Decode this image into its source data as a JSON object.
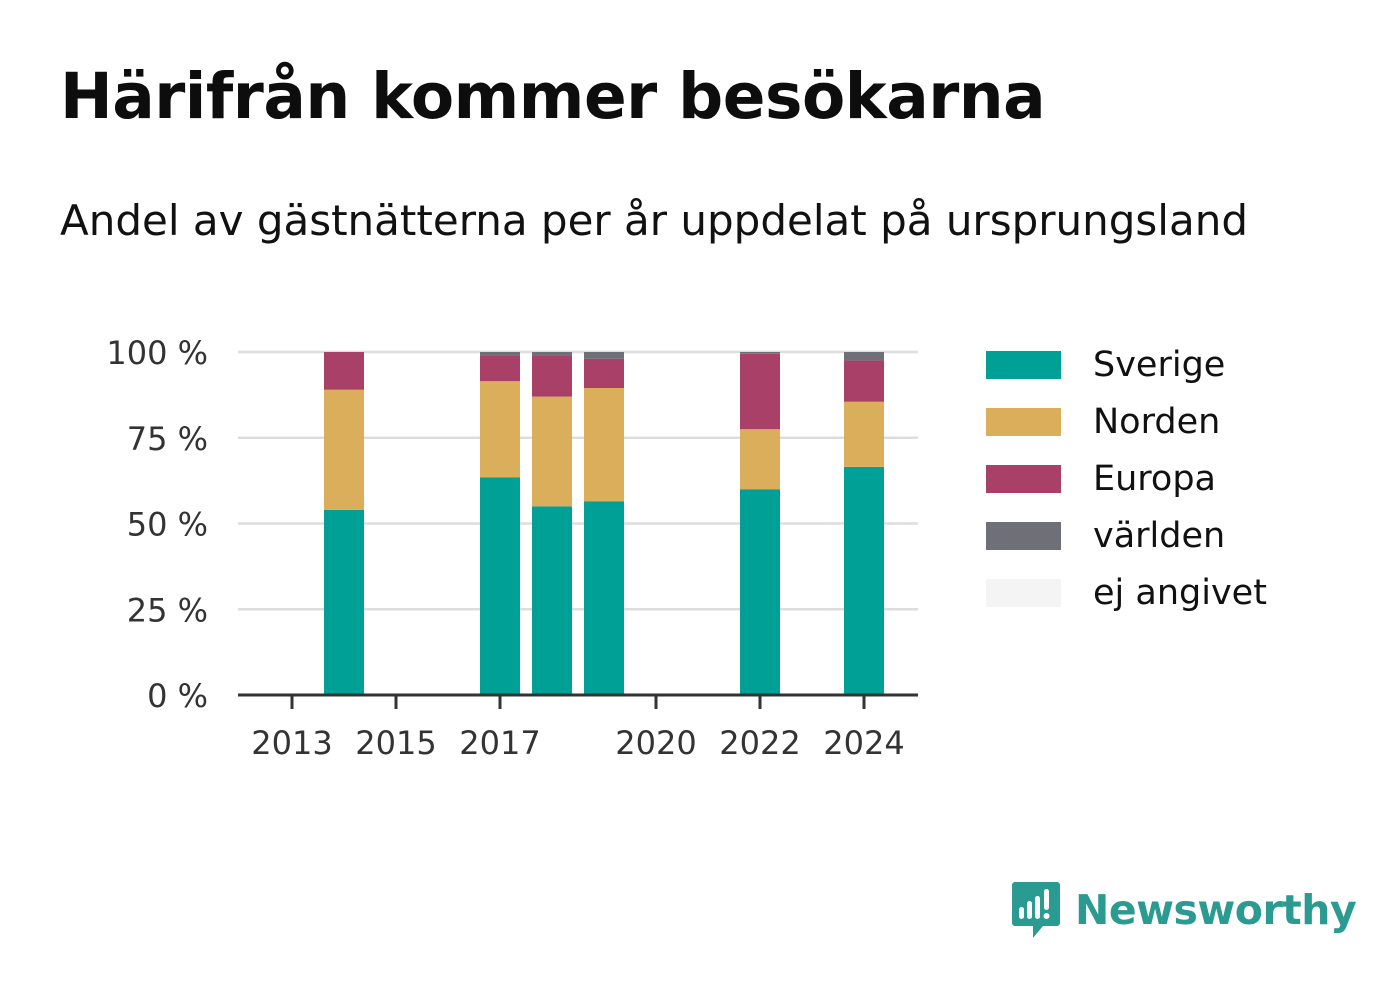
{
  "header": {
    "title": "Härifrån kommer besökarna",
    "subtitle": "Andel av gästnätterna per år uppdelat på ursprungsland"
  },
  "logo": {
    "text": "Newsworthy"
  },
  "colors": {
    "grid": "#dddddd",
    "axis": "#333333",
    "Sverige": "#00a096",
    "Norden": "#dbae5c",
    "Europa": "#a84068",
    "världen": "#6f6f77",
    "ej angivet": "#f4f4f4"
  },
  "chart_data": {
    "type": "bar",
    "stacked": true,
    "title": "Härifrån kommer besökarna",
    "subtitle": "Andel av gästnätterna per år uppdelat på ursprungsland",
    "x": [
      2014,
      2017,
      2018,
      2019,
      2022,
      2024
    ],
    "xlim": [
      2012,
      2025
    ],
    "x_ticks": [
      2013,
      2015,
      2017,
      2020,
      2022,
      2024
    ],
    "ylim": [
      0,
      100
    ],
    "y_ticks": [
      0,
      25,
      50,
      75,
      100
    ],
    "y_tick_labels": [
      "0 %",
      "25 %",
      "50 %",
      "75 %",
      "100 %"
    ],
    "grid": true,
    "legend_position": "right",
    "series": [
      {
        "name": "Sverige",
        "values": [
          54,
          63.5,
          55,
          56.5,
          60,
          66.5
        ]
      },
      {
        "name": "Norden",
        "values": [
          35,
          28,
          32,
          33,
          17.5,
          19
        ]
      },
      {
        "name": "Europa",
        "values": [
          11,
          7.5,
          12,
          8.5,
          22,
          12
        ]
      },
      {
        "name": "världen",
        "values": [
          0,
          1,
          1,
          2,
          0.5,
          2.5
        ]
      },
      {
        "name": "ej angivet",
        "values": [
          0,
          0,
          0,
          0,
          0,
          0
        ]
      }
    ]
  }
}
